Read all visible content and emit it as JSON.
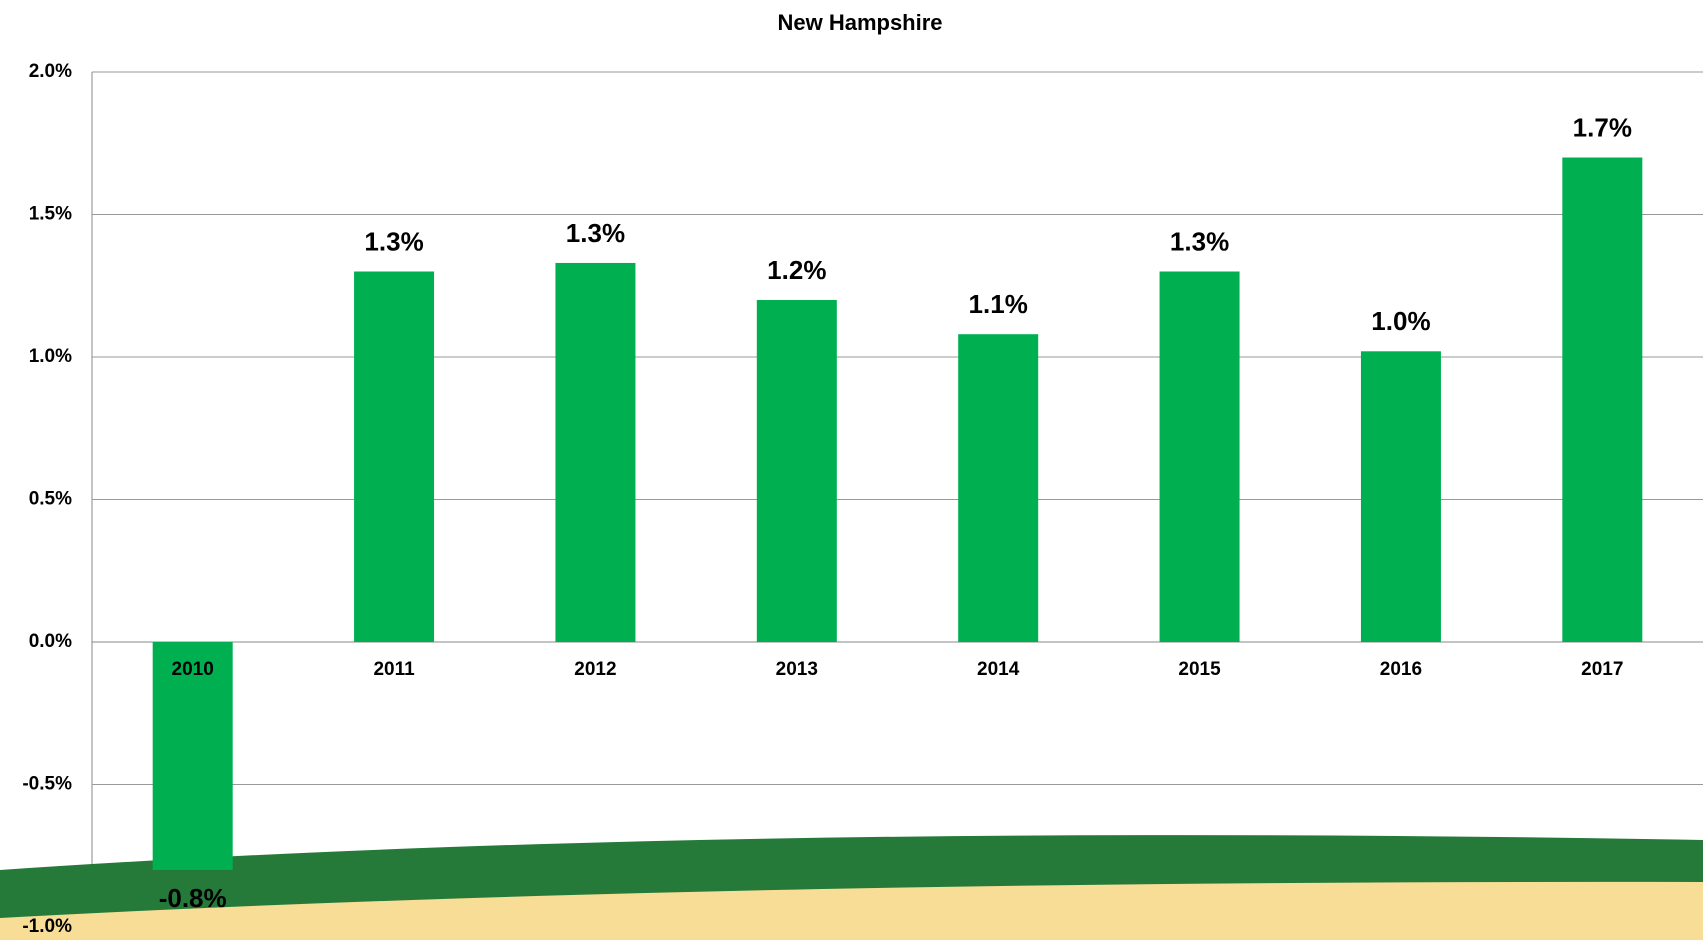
{
  "chart_data": {
    "type": "bar",
    "title": "New Hampshire",
    "categories": [
      "2010",
      "2011",
      "2012",
      "2013",
      "2014",
      "2015",
      "2016",
      "2017"
    ],
    "values": [
      -0.8,
      1.3,
      1.33,
      1.2,
      1.08,
      1.3,
      1.02,
      1.7
    ],
    "value_labels": [
      "-0.8%",
      "1.3%",
      "1.3%",
      "1.2%",
      "1.1%",
      "1.3%",
      "1.0%",
      "1.7%"
    ],
    "color": "#00b050",
    "ylim": [
      -1,
      2
    ],
    "yticks": [
      {
        "value": -1,
        "label": "-1.0%"
      },
      {
        "value": -0.5,
        "label": "-0.5%"
      },
      {
        "value": 0,
        "label": "0.0%"
      },
      {
        "value": 0.5,
        "label": "0.5%"
      },
      {
        "value": 1,
        "label": "1.0%"
      },
      {
        "value": 1.5,
        "label": "1.5%"
      },
      {
        "value": 2,
        "label": "2.0%"
      }
    ],
    "grid": true
  }
}
